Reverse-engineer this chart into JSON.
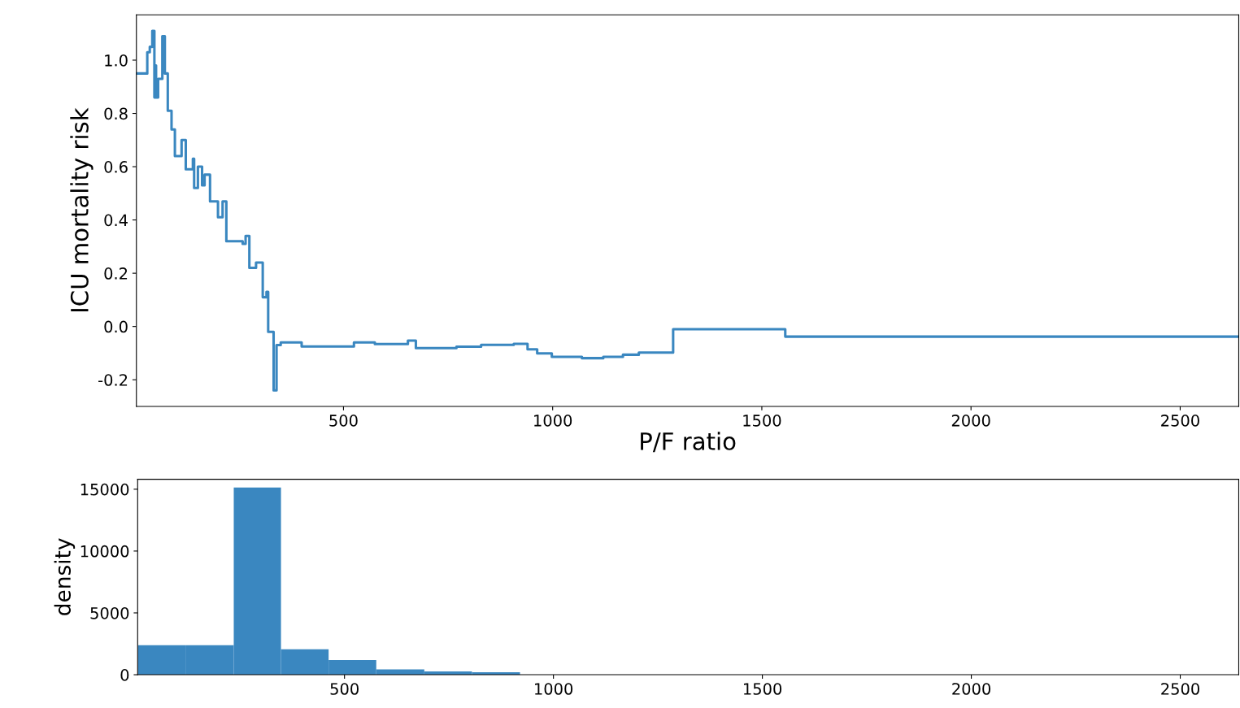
{
  "chart_data": [
    {
      "type": "step",
      "xlabel": "P/F ratio",
      "ylabel": "ICU mortality risk",
      "xlim": [
        5,
        2640
      ],
      "ylim": [
        -0.3,
        1.17
      ],
      "xticks": [
        500,
        1000,
        1500,
        2000,
        2500
      ],
      "yticks": [
        {
          "value": -0.2,
          "label": "-0.2"
        },
        {
          "value": 0,
          "label": "0.0"
        },
        0.2,
        0.4,
        0.6,
        0.8,
        {
          "value": 1,
          "label": "1.0"
        }
      ],
      "grid": false,
      "legend": false,
      "x": [
        5,
        31,
        37,
        43,
        48,
        50,
        52,
        57,
        67,
        73,
        80,
        89,
        97,
        110,
        113,
        123,
        137,
        140,
        143,
        152,
        162,
        168,
        181,
        200,
        211,
        220,
        259,
        266,
        275,
        291,
        307,
        316,
        320,
        333,
        340,
        350,
        400,
        525,
        575,
        654,
        673,
        770,
        829,
        907,
        940,
        963,
        998,
        1070,
        1121,
        1168,
        1206,
        1288,
        1556,
        2640
      ],
      "series": [
        {
          "color": "#3a87c0",
          "values": [
            0.95,
            1.03,
            1.05,
            1.11,
            0.86,
            0.98,
            0.86,
            0.93,
            1.09,
            0.95,
            0.81,
            0.74,
            0.64,
            0.64,
            0.7,
            0.59,
            0.59,
            0.63,
            0.52,
            0.6,
            0.53,
            0.57,
            0.47,
            0.41,
            0.47,
            0.32,
            0.31,
            0.34,
            0.22,
            0.24,
            0.11,
            0.13,
            -0.02,
            -0.24,
            -0.07,
            -0.06,
            -0.075,
            -0.06,
            -0.066,
            -0.053,
            -0.081,
            -0.076,
            -0.069,
            -0.065,
            -0.086,
            -0.101,
            -0.114,
            -0.119,
            -0.114,
            -0.106,
            -0.098,
            -0.01,
            -0.038,
            -0.038
          ]
        }
      ]
    },
    {
      "type": "histogram",
      "ylabel": "density",
      "xlim": [
        5,
        2640
      ],
      "ylim": [
        0,
        15800
      ],
      "xticks": [
        500,
        1000,
        1500,
        2000,
        2500
      ],
      "yticks": [
        0,
        5000,
        10000,
        15000
      ],
      "grid": false,
      "legend": false,
      "bins": [
        6,
        121,
        235,
        348,
        462,
        576,
        691,
        805,
        920
      ],
      "values": [
        2380,
        2380,
        15130,
        2050,
        1190,
        430,
        260,
        200
      ],
      "color": "#3a87c0"
    }
  ]
}
